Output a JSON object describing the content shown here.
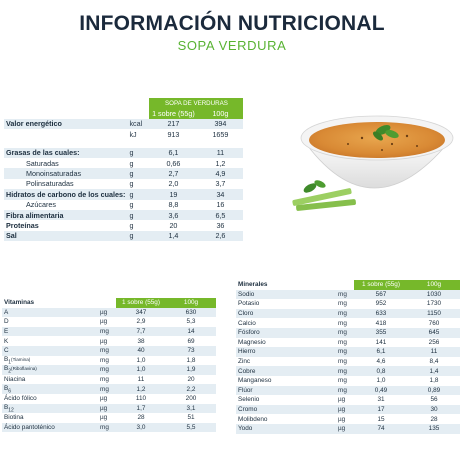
{
  "header": {
    "title": "INFORMACIÓN NUTRICIONAL",
    "subtitle": "SOPA VERDURA"
  },
  "main": {
    "product_header": "SOPA DE VERDURAS",
    "col1": "1 sobre (55g)",
    "col2": "100g",
    "energy_label": "Valor energético",
    "energy": [
      {
        "unit": "kcal",
        "v1": "217",
        "v2": "394"
      },
      {
        "unit": "kJ",
        "v1": "913",
        "v2": "1659"
      }
    ],
    "rows": [
      {
        "label": "Grasas de las cuales:",
        "unit": "g",
        "v1": "6,1",
        "v2": "11"
      },
      {
        "label": "Saturadas",
        "unit": "g",
        "v1": "0,66",
        "v2": "1,2"
      },
      {
        "label": "Monoinsaturadas",
        "unit": "g",
        "v1": "2,7",
        "v2": "4,9"
      },
      {
        "label": "Polinsaturadas",
        "unit": "g",
        "v1": "2,0",
        "v2": "3,7"
      },
      {
        "label": "Hidratos de carbono de los cuales:",
        "unit": "g",
        "v1": "19",
        "v2": "34"
      },
      {
        "label": "Azúcares",
        "unit": "g",
        "v1": "8,8",
        "v2": "16"
      },
      {
        "label": "Fibra alimentaria",
        "unit": "g",
        "v1": "3,6",
        "v2": "6,5"
      },
      {
        "label": "Proteínas",
        "unit": "g",
        "v1": "20",
        "v2": "36"
      },
      {
        "label": "Sal",
        "unit": "g",
        "v1": "1,4",
        "v2": "2,6"
      }
    ]
  },
  "vitamins": {
    "title": "Vitaminas",
    "col1": "1 sobre (55g)",
    "col2": "100g",
    "rows": [
      {
        "label": "A",
        "unit": "µg",
        "v1": "347",
        "v2": "630"
      },
      {
        "label": "D",
        "unit": "µg",
        "v1": "2,9",
        "v2": "5,3"
      },
      {
        "label": "E",
        "unit": "mg",
        "v1": "7,7",
        "v2": "14"
      },
      {
        "label": "K",
        "unit": "µg",
        "v1": "38",
        "v2": "69"
      },
      {
        "label": "C",
        "unit": "mg",
        "v1": "40",
        "v2": "73"
      },
      {
        "label": "B",
        "sub": "1",
        "note": "(Tiamina)",
        "unit": "mg",
        "v1": "1,0",
        "v2": "1,8"
      },
      {
        "label": "B",
        "sub": "2",
        "note": "(Riboflavina)",
        "unit": "mg",
        "v1": "1,0",
        "v2": "1,9"
      },
      {
        "label": "Niacina",
        "unit": "mg",
        "v1": "11",
        "v2": "20"
      },
      {
        "label": "B",
        "sub": "6",
        "unit": "mg",
        "v1": "1,2",
        "v2": "2,2"
      },
      {
        "label": "Ácido fólico",
        "unit": "µg",
        "v1": "110",
        "v2": "200"
      },
      {
        "label": "B",
        "sub": "12",
        "unit": "µg",
        "v1": "1,7",
        "v2": "3,1"
      },
      {
        "label": "Biotina",
        "unit": "µg",
        "v1": "28",
        "v2": "51"
      },
      {
        "label": "Ácido pantoténico",
        "unit": "mg",
        "v1": "3,0",
        "v2": "5,5"
      }
    ]
  },
  "minerals": {
    "title": "Minerales",
    "col1": "1 sobre (55g)",
    "col2": "100g",
    "rows": [
      {
        "label": "Sodio",
        "unit": "mg",
        "v1": "567",
        "v2": "1030"
      },
      {
        "label": "Potasio",
        "unit": "mg",
        "v1": "952",
        "v2": "1730"
      },
      {
        "label": "Cloro",
        "unit": "mg",
        "v1": "633",
        "v2": "1150"
      },
      {
        "label": "Calcio",
        "unit": "mg",
        "v1": "418",
        "v2": "760"
      },
      {
        "label": "Fósforo",
        "unit": "mg",
        "v1": "355",
        "v2": "645"
      },
      {
        "label": "Magnesio",
        "unit": "mg",
        "v1": "141",
        "v2": "256"
      },
      {
        "label": "Hierro",
        "unit": "mg",
        "v1": "6,1",
        "v2": "11"
      },
      {
        "label": "Zinc",
        "unit": "mg",
        "v1": "4,6",
        "v2": "8,4"
      },
      {
        "label": "Cobre",
        "unit": "mg",
        "v1": "0,8",
        "v2": "1,4"
      },
      {
        "label": "Manganeso",
        "unit": "mg",
        "v1": "1,0",
        "v2": "1,8"
      },
      {
        "label": "Flúor",
        "unit": "mg",
        "v1": "0,49",
        "v2": "0,89"
      },
      {
        "label": "Selenio",
        "unit": "µg",
        "v1": "31",
        "v2": "56"
      },
      {
        "label": "Cromo",
        "unit": "µg",
        "v1": "17",
        "v2": "30"
      },
      {
        "label": "Molibdeno",
        "unit": "µg",
        "v1": "15",
        "v2": "28"
      },
      {
        "label": "Yodo",
        "unit": "µg",
        "v1": "74",
        "v2": "135"
      }
    ]
  },
  "image": {
    "icon": "soup-bowl-icon"
  },
  "colors": {
    "accent_green": "#76b82a",
    "row_shade": "#e4edf3",
    "title_navy": "#1b2a3c"
  }
}
